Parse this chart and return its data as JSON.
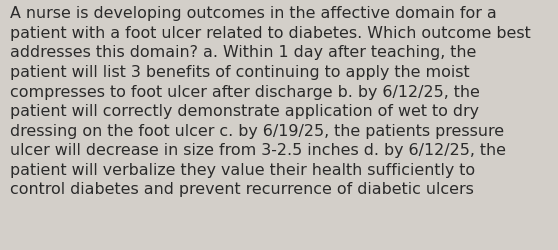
{
  "lines": [
    "A nurse is developing outcomes in the affective domain for a",
    "patient with a foot ulcer related to diabetes. Which outcome best",
    "addresses this domain? a. Within 1 day after teaching, the",
    "patient will list 3 benefits of continuing to apply the moist",
    "compresses to foot ulcer after discharge b. by 6/12/25, the",
    "patient will correctly demonstrate application of wet to dry",
    "dressing on the foot ulcer c. by 6/19/25, the patients pressure",
    "ulcer will decrease in size from 3-2.5 inches d. by 6/12/25, the",
    "patient will verbalize they value their health sufficiently to",
    "control diabetes and prevent recurrence of diabetic ulcers"
  ],
  "background_color": "#d3cfc9",
  "text_color": "#2b2b2b",
  "font_size": 11.4,
  "fig_width": 5.58,
  "fig_height": 2.51,
  "dpi": 100
}
